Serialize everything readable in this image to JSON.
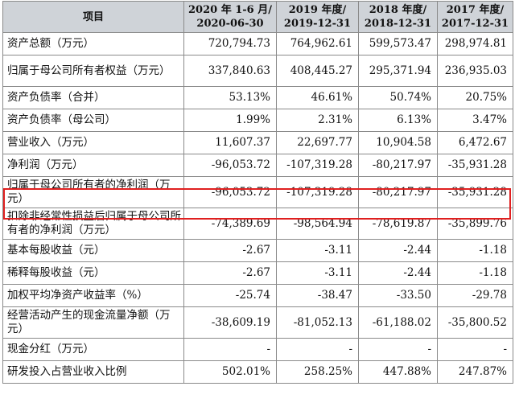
{
  "table": {
    "header": {
      "item": "项目",
      "columns": [
        {
          "line1": "2020 年 1-6 月/",
          "line2": "2020-06-30"
        },
        {
          "line1": "2019 年度/",
          "line2": "2019-12-31"
        },
        {
          "line1": "2018 年度/",
          "line2": "2018-12-31"
        },
        {
          "line1": "2017 年度/",
          "line2": "2017-12-31"
        }
      ]
    },
    "rows": [
      {
        "label": "资产总额（万元）",
        "values": [
          "720,794.73",
          "764,962.61",
          "599,573.47",
          "298,974.81"
        ]
      },
      {
        "label": "归属于母公司所有者权益（万元）",
        "values": [
          "337,840.63",
          "408,445.27",
          "295,371.94",
          "236,935.03"
        ]
      },
      {
        "label": "资产负债率（合并）",
        "values": [
          "53.13%",
          "46.61%",
          "50.74%",
          "20.75%"
        ]
      },
      {
        "label": "资产负债率（母公司）",
        "values": [
          "1.99%",
          "2.31%",
          "6.13%",
          "3.47%"
        ]
      },
      {
        "label": "营业收入（万元）",
        "values": [
          "11,607.37",
          "22,697.77",
          "10,904.58",
          "6,472.67"
        ]
      },
      {
        "label": "净利润（万元）",
        "values": [
          "-96,053.72",
          "-107,319.28",
          "-80,217.97",
          "-35,931.28"
        ]
      },
      {
        "label": "归属于母公司所有者的净利润（万元）",
        "values": [
          "-96,053.72",
          "-107,319.28",
          "-80,217.97",
          "-35,931.28"
        ]
      },
      {
        "label": "扣除非经常性损益后归属于母公司所有者的净利润（万元）",
        "values": [
          "-74,389.69",
          "-98,564.94",
          "-78,619.87",
          "-35,899.76"
        ]
      },
      {
        "label": "基本每股收益（元）",
        "values": [
          "-2.67",
          "-3.11",
          "-2.44",
          "-1.18"
        ]
      },
      {
        "label": "稀释每股收益（元）",
        "values": [
          "-2.67",
          "-3.11",
          "-2.44",
          "-1.18"
        ]
      },
      {
        "label": "加权平均净资产收益率（%）",
        "values": [
          "-25.74",
          "-38.47",
          "-33.50",
          "-29.78"
        ]
      },
      {
        "label": "经营活动产生的现金流量净额（万元）",
        "values": [
          "-38,609.19",
          "-81,052.13",
          "-61,188.02",
          "-35,800.52"
        ]
      },
      {
        "label": "现金分红（万元）",
        "values": [
          "-",
          "-",
          "-",
          "-"
        ]
      },
      {
        "label": "研发投入占营业收入比例",
        "values": [
          "502.01%",
          "258.25%",
          "447.88%",
          "247.87%"
        ]
      }
    ]
  },
  "highlight_color": "#e02020",
  "header_bg": "#cfd3d8"
}
